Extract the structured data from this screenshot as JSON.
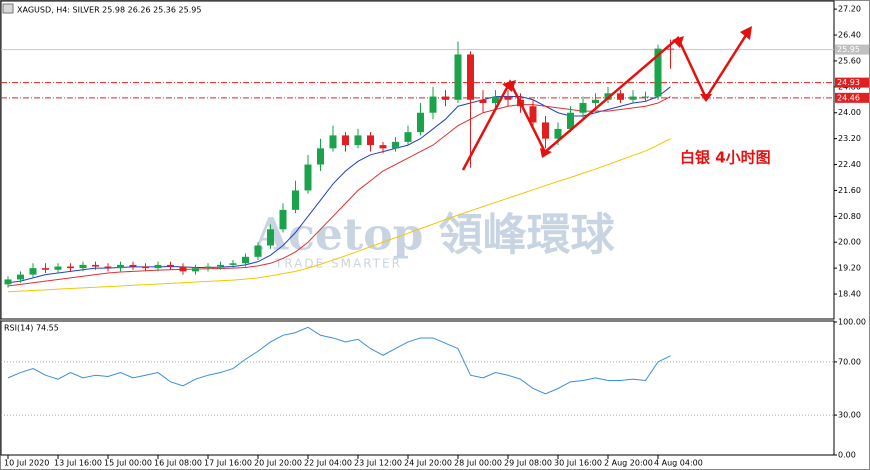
{
  "symbol_label": "XAGUSD, H4:  SILVER  25.98 26.26 25.36 25.95",
  "annotation": "白银  4小时图",
  "watermark": {
    "brand": "Acetop 領峰環球",
    "tagline": "TRADE SMARTER"
  },
  "chart_data": [
    {
      "type": "candlestick",
      "categories": [
        "10 Jul 2020",
        null,
        null,
        null,
        "13 Jul 16:00",
        null,
        null,
        null,
        "15 Jul 00:00",
        null,
        null,
        null,
        "16 Jul 08:00",
        null,
        null,
        null,
        "17 Jul 16:00",
        null,
        null,
        null,
        "20 Jul 20:00",
        null,
        null,
        null,
        "22 Jul 04:00",
        null,
        null,
        null,
        "23 Jul 12:00",
        null,
        null,
        null,
        "24 Jul 20:00",
        null,
        null,
        null,
        "28 Jul 00:00",
        null,
        null,
        null,
        "29 Jul 08:00",
        null,
        null,
        null,
        "30 Jul 16:00",
        null,
        null,
        null,
        "2 Aug 20:00",
        null,
        null,
        null,
        "4 Aug 04:00",
        null
      ],
      "open": [
        18.7,
        18.85,
        19.0,
        19.2,
        19.15,
        19.25,
        19.2,
        19.3,
        19.25,
        19.2,
        19.3,
        19.25,
        19.2,
        19.3,
        19.25,
        19.1,
        19.2,
        19.25,
        19.3,
        19.35,
        19.55,
        19.9,
        20.4,
        21.0,
        21.6,
        22.4,
        22.9,
        23.3,
        23.0,
        23.3,
        23.0,
        22.9,
        23.1,
        23.4,
        24.0,
        24.5,
        24.4,
        25.8,
        24.4,
        24.3,
        24.5,
        24.4,
        24.2,
        23.7,
        23.2,
        23.5,
        24.0,
        24.3,
        24.4,
        24.6,
        24.4,
        24.5,
        24.5,
        25.98
      ],
      "high": [
        18.95,
        19.1,
        19.35,
        19.35,
        19.35,
        19.35,
        19.4,
        19.4,
        19.35,
        19.4,
        19.4,
        19.35,
        19.4,
        19.4,
        19.35,
        19.3,
        19.35,
        19.4,
        19.45,
        19.65,
        20.0,
        20.55,
        21.2,
        21.9,
        22.7,
        23.2,
        23.6,
        23.4,
        23.5,
        23.4,
        23.1,
        23.25,
        23.6,
        24.3,
        24.8,
        24.7,
        26.2,
        25.9,
        24.7,
        24.7,
        24.7,
        24.6,
        24.4,
        23.9,
        23.7,
        24.2,
        24.5,
        24.6,
        24.8,
        24.7,
        24.7,
        24.65,
        26.1,
        26.26
      ],
      "low": [
        18.6,
        18.75,
        18.9,
        19.05,
        19.05,
        19.1,
        19.1,
        19.15,
        19.1,
        19.1,
        19.15,
        19.1,
        19.1,
        19.15,
        19.0,
        19.0,
        19.1,
        19.15,
        19.2,
        19.25,
        19.45,
        19.8,
        20.3,
        20.9,
        21.5,
        22.2,
        22.8,
        22.8,
        22.9,
        22.8,
        22.75,
        22.8,
        23.0,
        23.3,
        23.8,
        24.2,
        24.3,
        22.3,
        24.0,
        24.1,
        24.2,
        24.0,
        23.5,
        22.9,
        23.0,
        23.4,
        23.8,
        24.1,
        24.3,
        24.3,
        24.3,
        24.35,
        24.4,
        25.36
      ],
      "close": [
        18.85,
        19.0,
        19.2,
        19.15,
        19.25,
        19.2,
        19.3,
        19.25,
        19.2,
        19.3,
        19.25,
        19.2,
        19.3,
        19.25,
        19.1,
        19.2,
        19.25,
        19.3,
        19.35,
        19.55,
        19.9,
        20.4,
        21.0,
        21.6,
        22.4,
        22.9,
        23.3,
        23.0,
        23.3,
        23.0,
        22.9,
        23.1,
        23.4,
        24.0,
        24.5,
        24.4,
        25.8,
        24.4,
        24.3,
        24.5,
        24.4,
        24.2,
        23.7,
        23.2,
        23.5,
        24.0,
        24.3,
        24.4,
        24.6,
        24.4,
        24.5,
        24.5,
        25.98,
        25.95
      ],
      "up_color": "#1aa34a",
      "down_color": "#e02020",
      "ma": [
        {
          "color": "#1f3fd0",
          "values": [
            18.75,
            18.8,
            18.9,
            19.0,
            19.05,
            19.1,
            19.15,
            19.2,
            19.2,
            19.22,
            19.24,
            19.24,
            19.24,
            19.25,
            19.24,
            19.22,
            19.22,
            19.23,
            19.25,
            19.3,
            19.4,
            19.6,
            19.9,
            20.3,
            20.8,
            21.3,
            21.8,
            22.2,
            22.5,
            22.7,
            22.8,
            22.9,
            23.0,
            23.2,
            23.5,
            23.8,
            24.2,
            24.3,
            24.4,
            24.5,
            24.5,
            24.5,
            24.4,
            24.2,
            24.0,
            23.9,
            23.9,
            24.0,
            24.1,
            24.2,
            24.3,
            24.35,
            24.5,
            24.8
          ]
        },
        {
          "color": "#e03030",
          "values": [
            18.65,
            18.7,
            18.75,
            18.8,
            18.85,
            18.9,
            18.95,
            19.0,
            19.05,
            19.08,
            19.1,
            19.12,
            19.14,
            19.15,
            19.16,
            19.17,
            19.18,
            19.19,
            19.2,
            19.22,
            19.27,
            19.35,
            19.5,
            19.7,
            20.0,
            20.4,
            20.8,
            21.2,
            21.6,
            21.9,
            22.2,
            22.4,
            22.6,
            22.8,
            23.0,
            23.3,
            23.6,
            23.8,
            24.0,
            24.1,
            24.2,
            24.25,
            24.25,
            24.2,
            24.15,
            24.1,
            24.05,
            24.05,
            24.05,
            24.1,
            24.15,
            24.2,
            24.3,
            24.5
          ]
        },
        {
          "color": "#f0c800",
          "values": [
            18.47,
            18.49,
            18.51,
            18.53,
            18.55,
            18.57,
            18.59,
            18.61,
            18.63,
            18.65,
            18.67,
            18.69,
            18.71,
            18.73,
            18.75,
            18.77,
            18.79,
            18.81,
            18.83,
            18.86,
            18.9,
            18.96,
            19.03,
            19.1,
            19.2,
            19.32,
            19.45,
            19.58,
            19.72,
            19.86,
            20.0,
            20.14,
            20.28,
            20.42,
            20.56,
            20.7,
            20.84,
            20.97,
            21.1,
            21.23,
            21.36,
            21.49,
            21.62,
            21.75,
            21.88,
            22.0,
            22.13,
            22.26,
            22.4,
            22.54,
            22.68,
            22.82,
            23.0,
            23.2
          ]
        }
      ],
      "levels": [
        {
          "value": 24.93,
          "label": "24.93",
          "color": "#e02020"
        },
        {
          "value": 24.46,
          "label": "24.46",
          "color": "#e02020"
        }
      ],
      "last_price": {
        "value": 25.95,
        "label": "25.95"
      },
      "ylim": [
        17.66,
        27.42
      ],
      "yticks": [
        {
          "value": 27.2,
          "label": "27.20"
        },
        {
          "value": 26.4,
          "label": "26.40"
        },
        {
          "value": 25.6,
          "label": "25.60"
        },
        {
          "value": 24.8,
          "label": "24.80"
        },
        {
          "value": 24,
          "label": "24.00"
        },
        {
          "value": 23.2,
          "label": "23.20"
        },
        {
          "value": 22.4,
          "label": "22.40"
        },
        {
          "value": 21.6,
          "label": "21.60"
        },
        {
          "value": 20.8,
          "label": "20.80"
        },
        {
          "value": 20,
          "label": "20.00"
        },
        {
          "value": 19.2,
          "label": "19.20"
        },
        {
          "value": 18.4,
          "label": "18.40"
        }
      ]
    },
    {
      "type": "line",
      "title": "RSI(14) 74.55",
      "color": "#3a8ee0",
      "values": [
        58,
        62,
        65,
        60,
        57,
        62,
        58,
        60,
        59,
        62,
        58,
        60,
        62,
        55,
        52,
        57,
        60,
        62,
        65,
        72,
        78,
        85,
        90,
        92,
        96,
        90,
        88,
        85,
        87,
        80,
        75,
        80,
        85,
        88,
        88,
        84,
        80,
        60,
        58,
        62,
        60,
        57,
        50,
        46,
        50,
        55,
        56,
        58,
        56,
        56,
        57,
        56,
        70,
        74.55
      ],
      "ylim": [
        0,
        100
      ],
      "yticks": [
        {
          "value": 100,
          "label": "100.00"
        },
        {
          "value": 70,
          "label": "70.00"
        },
        {
          "value": 30,
          "label": "30.00"
        },
        {
          "value": 0,
          "label": "0.00"
        }
      ],
      "grid_ticks": [
        70,
        30
      ]
    }
  ]
}
